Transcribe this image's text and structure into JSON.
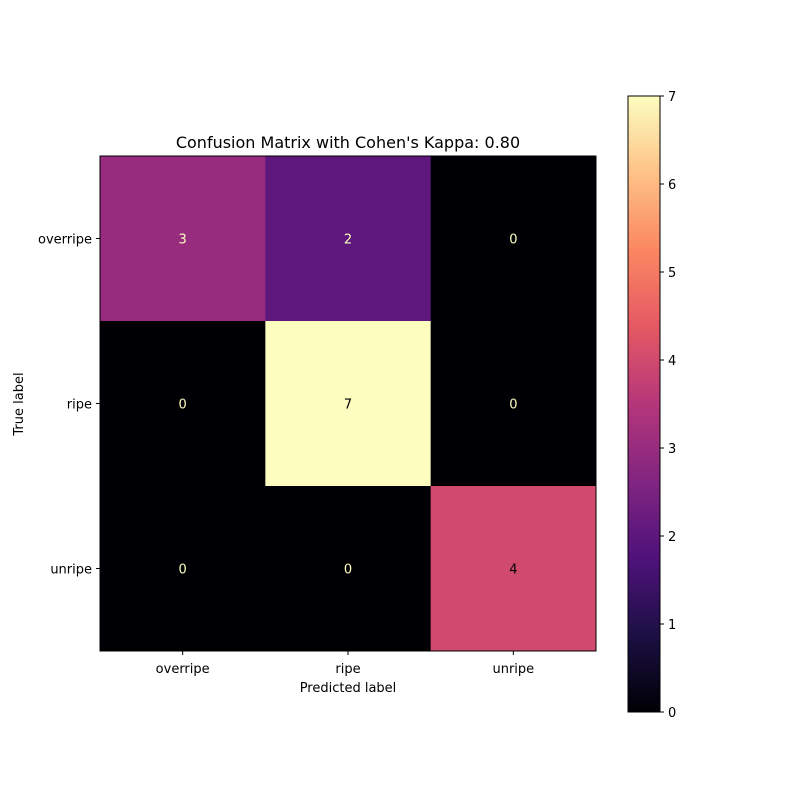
{
  "chart_data": {
    "type": "heatmap",
    "title": "Confusion Matrix with Cohen's Kappa: 0.80",
    "xlabel": "Predicted label",
    "ylabel": "True label",
    "x_categories": [
      "overripe",
      "ripe",
      "unripe"
    ],
    "y_categories": [
      "overripe",
      "ripe",
      "unripe"
    ],
    "matrix": [
      [
        3,
        2,
        0
      ],
      [
        0,
        7,
        0
      ],
      [
        0,
        0,
        4
      ]
    ],
    "colormap": "magma",
    "colorbar": {
      "min": 0,
      "max": 7,
      "ticks": [
        0,
        1,
        2,
        3,
        4,
        5,
        6,
        7
      ]
    },
    "text_colors": {
      "dark_cell": "#fcfdbf",
      "light_cell": "#000004"
    },
    "grid": false
  }
}
